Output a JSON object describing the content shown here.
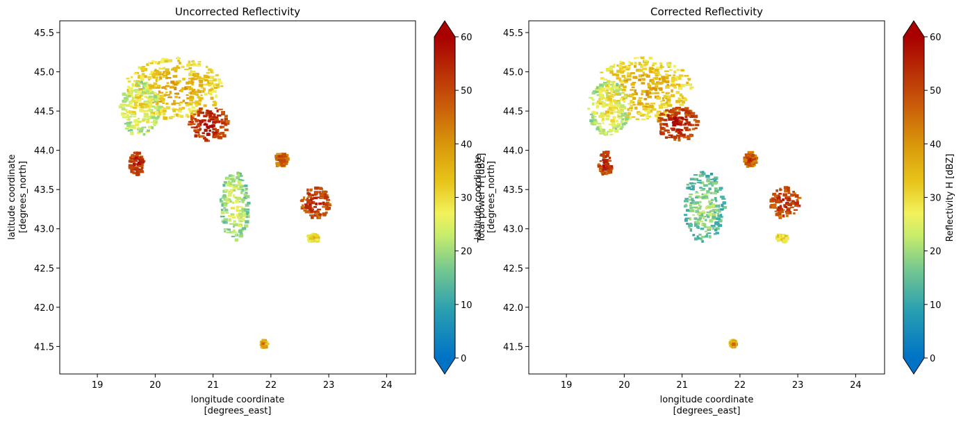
{
  "chart_data": [
    {
      "type": "heatmap",
      "title": "Uncorrected Reflectivity",
      "xlabel_lines": [
        "longitude coordinate",
        "[degrees_east]"
      ],
      "ylabel_lines": [
        "latitude coordinate",
        "[degrees_north]"
      ],
      "xlim": [
        18.35,
        24.5
      ],
      "ylim": [
        41.15,
        45.65
      ],
      "xticks": [
        "19",
        "20",
        "21",
        "22",
        "23",
        "24"
      ],
      "yticks": [
        "41.5",
        "42.0",
        "42.5",
        "43.0",
        "43.5",
        "44.0",
        "44.5",
        "45.0",
        "45.5"
      ],
      "colorbar": {
        "label": "Total power H [dBZ]",
        "range": [
          0,
          60
        ],
        "ticks": [
          "0",
          "10",
          "20",
          "30",
          "40",
          "50",
          "60"
        ],
        "extend": "both"
      },
      "echo_regions": [
        {
          "lon": 20.3,
          "lat": 44.8,
          "dbz": 30,
          "rlon": 0.85,
          "rlat": 0.4
        },
        {
          "lon": 20.9,
          "lat": 44.35,
          "dbz": 50,
          "rlon": 0.35,
          "rlat": 0.22
        },
        {
          "lon": 19.7,
          "lat": 44.55,
          "dbz": 22,
          "rlon": 0.35,
          "rlat": 0.35
        },
        {
          "lon": 19.65,
          "lat": 43.85,
          "dbz": 50,
          "rlon": 0.12,
          "rlat": 0.15
        },
        {
          "lon": 21.35,
          "lat": 43.3,
          "dbz": 18,
          "rlon": 0.25,
          "rlat": 0.45
        },
        {
          "lon": 22.75,
          "lat": 43.35,
          "dbz": 48,
          "rlon": 0.25,
          "rlat": 0.2
        },
        {
          "lon": 22.15,
          "lat": 43.9,
          "dbz": 45,
          "rlon": 0.1,
          "rlat": 0.1
        },
        {
          "lon": 22.7,
          "lat": 42.9,
          "dbz": 28,
          "rlon": 0.1,
          "rlat": 0.05
        },
        {
          "lon": 21.85,
          "lat": 41.55,
          "dbz": 35,
          "rlon": 0.05,
          "rlat": 0.05
        }
      ]
    },
    {
      "type": "heatmap",
      "title": "Corrected Reflectivity",
      "xlabel_lines": [
        "longitude coordinate",
        "[degrees_east]"
      ],
      "ylabel_lines": [
        "latitude coordinate",
        "[degrees_north]"
      ],
      "xlim": [
        18.35,
        24.5
      ],
      "ylim": [
        41.15,
        45.65
      ],
      "xticks": [
        "19",
        "20",
        "21",
        "22",
        "23",
        "24"
      ],
      "yticks": [
        "41.5",
        "42.0",
        "42.5",
        "43.0",
        "43.5",
        "44.0",
        "44.5",
        "45.0",
        "45.5"
      ],
      "colorbar": {
        "label": "Reflectivity H [dBZ]",
        "range": [
          0,
          60
        ],
        "ticks": [
          "0",
          "10",
          "20",
          "30",
          "40",
          "50",
          "60"
        ],
        "extend": "both"
      },
      "echo_regions": [
        {
          "lon": 20.3,
          "lat": 44.8,
          "dbz": 30,
          "rlon": 0.85,
          "rlat": 0.4
        },
        {
          "lon": 20.9,
          "lat": 44.35,
          "dbz": 50,
          "rlon": 0.35,
          "rlat": 0.22
        },
        {
          "lon": 19.7,
          "lat": 44.55,
          "dbz": 22,
          "rlon": 0.35,
          "rlat": 0.35
        },
        {
          "lon": 19.65,
          "lat": 43.85,
          "dbz": 50,
          "rlon": 0.12,
          "rlat": 0.15
        },
        {
          "lon": 21.35,
          "lat": 43.3,
          "dbz": 14,
          "rlon": 0.35,
          "rlat": 0.45
        },
        {
          "lon": 22.75,
          "lat": 43.35,
          "dbz": 48,
          "rlon": 0.25,
          "rlat": 0.2
        },
        {
          "lon": 22.15,
          "lat": 43.9,
          "dbz": 45,
          "rlon": 0.1,
          "rlat": 0.1
        },
        {
          "lon": 22.7,
          "lat": 42.9,
          "dbz": 28,
          "rlon": 0.1,
          "rlat": 0.05
        },
        {
          "lon": 21.85,
          "lat": 41.55,
          "dbz": 35,
          "rlon": 0.05,
          "rlat": 0.05
        }
      ]
    }
  ]
}
